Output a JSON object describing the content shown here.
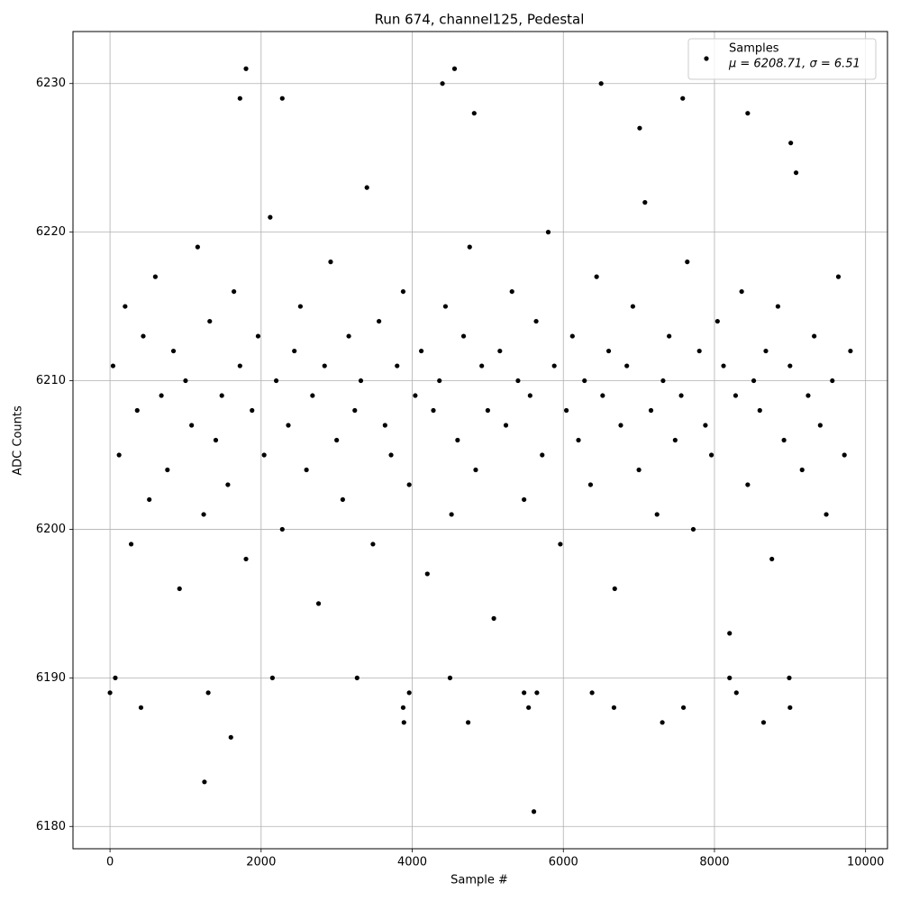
{
  "chart_data": {
    "type": "scatter",
    "title": "Run 674, channel125, Pedestal",
    "x_label": "Sample #",
    "y_label": "ADC Counts",
    "legend_stats": "μ = 6208.71, σ = 6.51",
    "legend_position": "upper right",
    "grid": true,
    "xlim": [
      -490,
      10290
    ],
    "ylim": [
      6178.5,
      6233.5
    ],
    "xticks": [
      0,
      2000,
      4000,
      6000,
      8000,
      10000
    ],
    "yticks": [
      6180,
      6190,
      6200,
      6210,
      6220,
      6230
    ],
    "series": [
      {
        "name": "Samples",
        "color": "#000000",
        "x": [
          0,
          70,
          410,
          1250,
          1300,
          1600,
          1800,
          1720,
          2150,
          2280,
          3270,
          3880,
          3890,
          3960,
          4400,
          4500,
          4560,
          4740,
          5480,
          5540,
          5610,
          5650,
          6380,
          6500,
          6670,
          7010,
          7310,
          7580,
          7590,
          8200,
          8290,
          8440,
          8650,
          8990,
          9000,
          9010,
          4820,
          40,
          120,
          200,
          280,
          360,
          440,
          520,
          600,
          680,
          760,
          840,
          920,
          1000,
          1080,
          1160,
          1240,
          1320,
          1400,
          1480,
          1560,
          1640,
          1720,
          1800,
          1880,
          1960,
          2040,
          2120,
          2200,
          2280,
          2360,
          2440,
          2520,
          2600,
          2680,
          2760,
          2840,
          2920,
          3000,
          3080,
          3160,
          3240,
          3320,
          3400,
          3480,
          3560,
          3640,
          3720,
          3800,
          3880,
          3960,
          4040,
          4120,
          4200,
          4280,
          4360,
          4440,
          4520,
          4600,
          4680,
          4760,
          4840,
          4920,
          5000,
          5080,
          5160,
          5240,
          5320,
          5400,
          5480,
          5560,
          5640,
          5720,
          5800,
          5880,
          5960,
          6040,
          6120,
          6200,
          6280,
          6360,
          6440,
          6520,
          6600,
          6680,
          6760,
          6840,
          6920,
          7000,
          7080,
          7160,
          7240,
          7320,
          7400,
          7480,
          7560,
          7640,
          7720,
          7800,
          7880,
          7960,
          8040,
          8120,
          8200,
          8280,
          8360,
          8440,
          8520,
          8600,
          8680,
          8760,
          8840,
          8920,
          9000,
          9080,
          9160,
          9240,
          9320,
          9400,
          9480,
          9560,
          9640,
          9720,
          9800
        ],
        "values": [
          6189,
          6190,
          6188,
          6183,
          6189,
          6186,
          6231,
          6229,
          6190,
          6229,
          6190,
          6188,
          6187,
          6189,
          6230,
          6190,
          6231,
          6187,
          6189,
          6188,
          6181,
          6189,
          6189,
          6230,
          6188,
          6227,
          6187,
          6229,
          6188,
          6190,
          6189,
          6228,
          6187,
          6190,
          6188,
          6226,
          6228,
          6211,
          6205,
          6215,
          6199,
          6208,
          6213,
          6202,
          6217,
          6209,
          6204,
          6212,
          6196,
          6210,
          6207,
          6219,
          6201,
          6214,
          6206,
          6209,
          6203,
          6216,
          6211,
          6198,
          6208,
          6213,
          6205,
          6221,
          6210,
          6200,
          6207,
          6212,
          6215,
          6204,
          6209,
          6195,
          6211,
          6218,
          6206,
          6202,
          6213,
          6208,
          6210,
          6223,
          6199,
          6214,
          6207,
          6205,
          6211,
          6216,
          6203,
          6209,
          6212,
          6197,
          6208,
          6210,
          6215,
          6201,
          6206,
          6213,
          6219,
          6204,
          6211,
          6208,
          6194,
          6212,
          6207,
          6216,
          6210,
          6202,
          6209,
          6214,
          6205,
          6220,
          6211,
          6199,
          6208,
          6213,
          6206,
          6210,
          6203,
          6217,
          6209,
          6212,
          6196,
          6207,
          6211,
          6215,
          6204,
          6222,
          6208,
          6201,
          6210,
          6213,
          6206,
          6209,
          6218,
          6200,
          6212,
          6207,
          6205,
          6214,
          6211,
          6193,
          6209,
          6216,
          6203,
          6210,
          6208,
          6212,
          6198,
          6215,
          6206,
          6211,
          6224,
          6204,
          6209,
          6213,
          6207,
          6201,
          6210,
          6217,
          6205,
          6212
        ]
      }
    ]
  }
}
